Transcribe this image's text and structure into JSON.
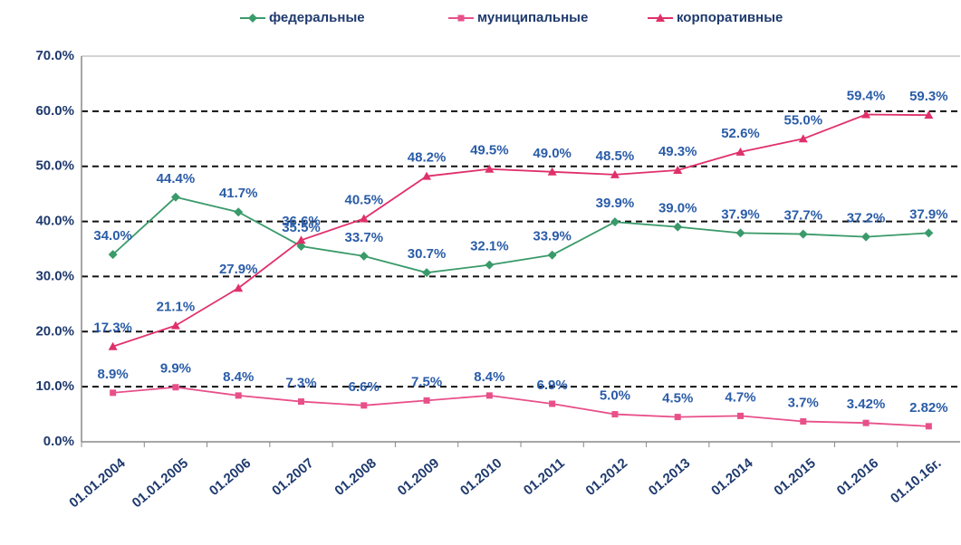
{
  "chart_data": {
    "type": "line",
    "categories": [
      "01.01.2004",
      "01.01.2005",
      "01.2006",
      "01.2007",
      "01.2008",
      "01.2009",
      "01.2010",
      "01.2011",
      "01.2012",
      "01.2013",
      "01.2014",
      "01.2015",
      "01.2016",
      "01.10.16г."
    ],
    "series": [
      {
        "name": "федеральные",
        "color": "#3a9a6a",
        "marker": "diamond",
        "values": [
          34.0,
          44.4,
          41.7,
          35.5,
          33.7,
          30.7,
          32.1,
          33.9,
          39.9,
          39.0,
          37.9,
          37.7,
          37.2,
          37.9
        ],
        "value_labels": [
          "34.0%",
          "44.4%",
          "41.7%",
          "35.5%",
          "33.7%",
          "30.7%",
          "32.1%",
          "33.9%",
          "39.9%",
          "39.0%",
          "37.9%",
          "37.7%",
          "37.2%",
          "37.9%"
        ]
      },
      {
        "name": "муниципальные",
        "color": "#e8508a",
        "marker": "square",
        "values": [
          8.9,
          9.9,
          8.4,
          7.3,
          6.6,
          7.5,
          8.4,
          6.9,
          5.0,
          4.5,
          4.7,
          3.7,
          3.42,
          2.82
        ],
        "value_labels": [
          "8.9%",
          "9.9%",
          "8.4%",
          "7.3%",
          "6.6%",
          "7.5%",
          "8.4%",
          "6.9%",
          "5.0%",
          "4.5%",
          "4.7%",
          "3.7%",
          "3.42%",
          "2.82%"
        ]
      },
      {
        "name": "корпоративные",
        "color": "#e0306a",
        "marker": "triangle",
        "values": [
          17.3,
          21.1,
          27.9,
          36.6,
          40.5,
          48.2,
          49.5,
          49.0,
          48.5,
          49.3,
          52.6,
          55.0,
          59.4,
          59.3
        ],
        "value_labels": [
          "17.3%",
          "21.1%",
          "27.9%",
          "36.6%",
          "40.5%",
          "48.2%",
          "49.5%",
          "49.0%",
          "48.5%",
          "49.3%",
          "52.6%",
          "55.0%",
          "59.4%",
          "59.3%"
        ]
      }
    ],
    "ylim": [
      0,
      70
    ],
    "yticks": [
      {
        "value": 0,
        "label": "0.0%"
      },
      {
        "value": 10,
        "label": "10.0%"
      },
      {
        "value": 20,
        "label": "20.0%"
      },
      {
        "value": 30,
        "label": "30.0%"
      },
      {
        "value": 40,
        "label": "40.0%"
      },
      {
        "value": 50,
        "label": "50.0%"
      },
      {
        "value": 60,
        "label": "60.0%"
      },
      {
        "value": 70,
        "label": "70.0%"
      }
    ],
    "grid": true,
    "legend": "top"
  }
}
